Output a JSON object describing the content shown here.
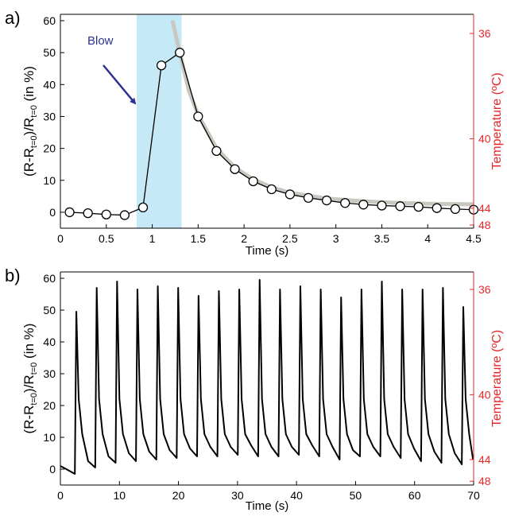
{
  "chart_data": [
    {
      "type": "line",
      "panel_label": "a)",
      "x_label": "Time (s)",
      "y_label": [
        "(R-R",
        "t=0",
        ")/R",
        "t=0",
        " (in %)"
      ],
      "y2_label": "Temperature (ºC)",
      "y2_color": "#e8262a",
      "xlim": [
        0,
        4.5
      ],
      "ylim": [
        -5,
        62
      ],
      "xticks": [
        0,
        0.5,
        1,
        1.5,
        2,
        2.5,
        3,
        3.5,
        4,
        4.5
      ],
      "yticks": [
        0,
        10,
        20,
        30,
        40,
        50,
        60
      ],
      "y2ticks": [
        36,
        40,
        44,
        48
      ],
      "y2tick_positions": [
        56,
        23,
        1.25,
        -4
      ],
      "highlight_x": [
        0.83,
        1.32
      ],
      "highlight_color": "#c6e9f7",
      "annotation": "Blow",
      "annotation_color": "#2e3192",
      "series": [
        {
          "color": "#c9c8c0",
          "width": 5,
          "x": [
            1.22,
            1.3,
            1.4,
            1.5,
            1.7,
            1.9,
            2.1,
            2.3,
            2.5,
            2.9,
            3.3,
            3.7,
            4.1,
            4.5
          ],
          "values": [
            60,
            50,
            38,
            30.5,
            20,
            14,
            10.3,
            7.8,
            6.1,
            4.3,
            3.4,
            2.9,
            2.6,
            2.5
          ]
        },
        {
          "color": "#000000",
          "width": 1.3,
          "markers": true,
          "x": [
            0.1,
            0.3,
            0.5,
            0.7,
            0.9,
            1.1,
            1.3,
            1.5,
            1.7,
            1.9,
            2.1,
            2.3,
            2.5,
            2.7,
            2.9,
            3.1,
            3.3,
            3.5,
            3.7,
            3.9,
            4.1,
            4.3,
            4.5
          ],
          "values": [
            0,
            -0.3,
            -0.7,
            -0.9,
            1.5,
            46,
            50,
            30,
            19.2,
            13.5,
            9.7,
            7.2,
            5.6,
            4.5,
            3.7,
            2.9,
            2.4,
            2.1,
            1.9,
            1.7,
            1.3,
            1.0,
            0.8
          ]
        }
      ]
    },
    {
      "type": "line",
      "panel_label": "b)",
      "x_label": "Time (s)",
      "y_label": [
        "(R-R",
        "t=0",
        ")/R",
        "t=0",
        " (in %)"
      ],
      "y2_label": "Temperature (ºC)",
      "y2_color": "#e8262a",
      "xlim": [
        0,
        70
      ],
      "ylim": [
        -5,
        62
      ],
      "xticks": [
        0,
        10,
        20,
        30,
        40,
        50,
        60,
        70
      ],
      "yticks": [
        0,
        10,
        20,
        30,
        40,
        50,
        60
      ],
      "y2ticks": [
        36,
        40,
        44,
        48
      ],
      "y2tick_positions": [
        56.5,
        23.4,
        3,
        -3.8
      ],
      "series": [
        {
          "color": "#000000",
          "width": 2,
          "x": [
            0,
            1,
            2.45,
            2.7,
            3.1,
            3.7,
            4.7,
            5.9,
            6.15,
            6.55,
            7.15,
            8.15,
            9.35,
            9.6,
            10.0,
            10.6,
            11.6,
            12.8,
            13.05,
            13.45,
            14.05,
            15.05,
            16.25,
            16.5,
            16.9,
            17.5,
            18.5,
            19.7,
            19.95,
            20.35,
            20.95,
            21.95,
            23.15,
            23.4,
            23.8,
            24.4,
            25.4,
            26.6,
            26.85,
            27.25,
            27.85,
            28.85,
            30.05,
            30.3,
            30.7,
            31.3,
            32.3,
            33.5,
            33.75,
            34.15,
            34.75,
            35.75,
            36.95,
            37.2,
            37.6,
            38.2,
            39.2,
            40.4,
            40.65,
            41.05,
            41.65,
            42.65,
            43.85,
            44.1,
            44.5,
            45.1,
            46.1,
            47.3,
            47.55,
            47.95,
            48.55,
            49.55,
            50.75,
            51.0,
            51.4,
            52.0,
            53.0,
            54.2,
            54.45,
            54.85,
            55.45,
            56.45,
            57.65,
            57.9,
            58.3,
            58.9,
            59.9,
            61.1,
            61.35,
            61.75,
            62.35,
            63.35,
            64.55,
            64.8,
            65.2,
            65.8,
            66.8,
            68.0,
            68.25,
            68.65,
            69.25,
            69.9
          ],
          "values": [
            1,
            0,
            -1.5,
            49.5,
            22,
            11,
            2.5,
            0.5,
            57,
            22,
            11,
            4,
            2,
            59,
            22,
            11,
            5,
            2.5,
            56.5,
            22,
            11,
            5.5,
            3,
            57.5,
            22,
            11,
            6,
            3.5,
            57,
            22,
            11,
            6.5,
            4,
            54.5,
            22,
            11,
            7,
            4,
            56,
            22,
            11,
            7,
            4.5,
            56.5,
            22,
            11,
            7.5,
            4,
            59.5,
            22,
            11,
            7,
            4,
            56.5,
            22,
            11,
            7,
            4.5,
            57.5,
            22,
            11,
            7.5,
            4,
            56.5,
            22,
            11,
            7,
            3,
            54,
            22,
            11,
            6,
            4,
            56.5,
            22,
            11,
            7,
            4,
            59,
            22,
            11,
            7,
            3.5,
            56.5,
            22,
            11,
            6.5,
            2.5,
            56.5,
            22,
            11,
            5.5,
            2,
            57,
            22,
            11,
            5,
            1.5,
            51,
            22,
            11,
            3
          ]
        }
      ]
    }
  ]
}
